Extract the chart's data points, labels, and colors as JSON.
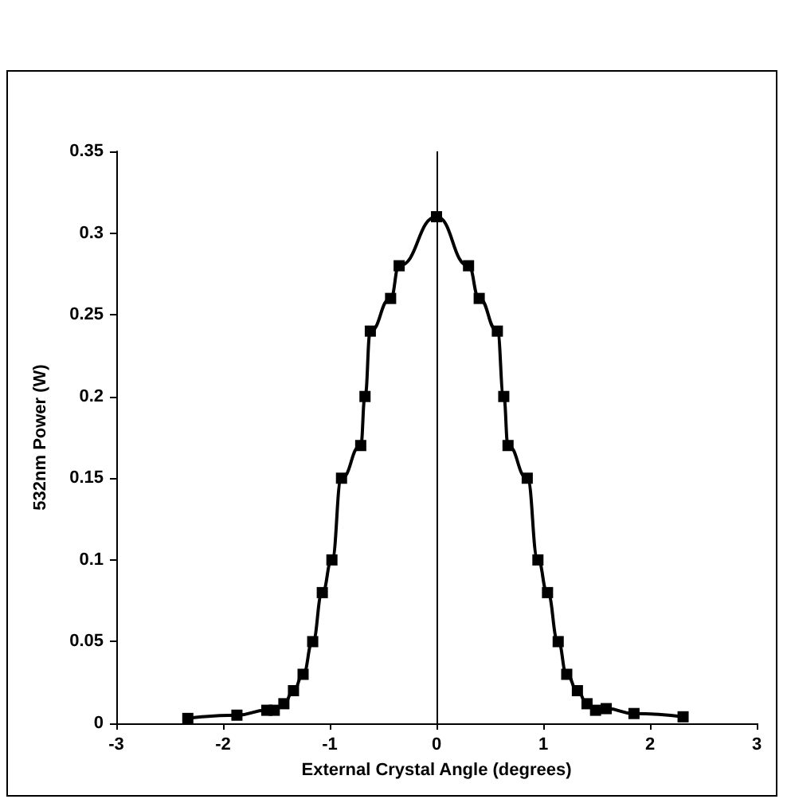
{
  "chart_data": {
    "type": "line",
    "xlabel": "External Crystal Angle (degrees)",
    "ylabel": "532nm Power (W)",
    "x": [
      -2.33,
      -1.87,
      -1.59,
      -1.52,
      -1.43,
      -1.34,
      -1.25,
      -1.16,
      -1.07,
      -0.98,
      -0.89,
      -0.71,
      -0.67,
      -0.62,
      -0.43,
      -0.35,
      0,
      0.3,
      0.4,
      0.57,
      0.63,
      0.67,
      0.85,
      0.95,
      1.04,
      1.14,
      1.22,
      1.32,
      1.41,
      1.49,
      1.59,
      1.85,
      2.31
    ],
    "series": [
      {
        "color": "#000000",
        "values": [
          0.003,
          0.005,
          0.008,
          0.008,
          0.012,
          0.02,
          0.03,
          0.05,
          0.08,
          0.1,
          0.15,
          0.17,
          0.2,
          0.24,
          0.26,
          0.28,
          0.31,
          0.28,
          0.26,
          0.24,
          0.2,
          0.17,
          0.15,
          0.1,
          0.08,
          0.05,
          0.03,
          0.02,
          0.012,
          0.008,
          0.009,
          0.006,
          0.004
        ]
      }
    ],
    "xlim": [
      -3,
      3
    ],
    "xticks": [
      -3,
      -2,
      -1,
      0,
      1,
      2,
      3
    ],
    "ylim": [
      0,
      0.35
    ],
    "yticks": [
      0,
      0.05,
      0.1,
      0.15,
      0.2,
      0.25,
      0.3,
      0.35
    ],
    "marker": "square",
    "ref_lines": [
      {
        "axis": "x",
        "value": 0,
        "color": "#000000"
      }
    ]
  }
}
